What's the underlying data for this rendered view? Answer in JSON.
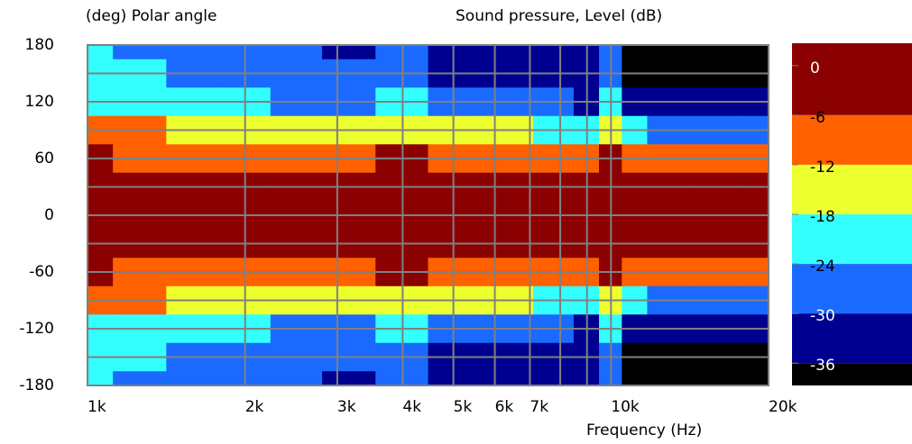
{
  "chart_data": {
    "type": "heatmap",
    "ylabel": "(deg)  Polar angle",
    "zlabel": "Sound pressure, Level  (dB)",
    "xlabel": "Frequency  (Hz)",
    "log_x": true,
    "grid": true,
    "xlim": [
      1000,
      20000
    ],
    "xticks": [
      {
        "value": 1000,
        "label": "1k"
      },
      {
        "value": 2000,
        "label": "2k"
      },
      {
        "value": 3000,
        "label": "3k"
      },
      {
        "value": 4000,
        "label": "4k"
      },
      {
        "value": 5000,
        "label": "5k"
      },
      {
        "value": 6000,
        "label": "6k"
      },
      {
        "value": 7000,
        "label": "7k"
      },
      {
        "value": 10000,
        "label": "10k"
      },
      {
        "value": 20000,
        "label": "20k"
      }
    ],
    "x_minor_grid": [
      8000,
      9000
    ],
    "ylim": [
      -180,
      180
    ],
    "yticks": [
      180,
      120,
      60,
      0,
      -60,
      -120,
      -180
    ],
    "y_minor_grid": [
      150,
      90,
      30,
      -30,
      -90,
      -150
    ],
    "x": [
      1000,
      1250,
      1600,
      2000,
      2500,
      3150,
      4000,
      5000,
      6300,
      8000,
      9000,
      10000,
      11000,
      12500,
      16000,
      20000
    ],
    "y": [
      180,
      150,
      120,
      90,
      60,
      30,
      0,
      -30,
      -60,
      -90,
      -120,
      -150,
      -180
    ],
    "z": [
      [
        -24,
        -25,
        -27,
        -29,
        -30,
        -31,
        -29,
        -32,
        -33,
        -35,
        -35,
        -29,
        -41,
        -42,
        -39,
        -38
      ],
      [
        -23,
        -24,
        -26,
        -28,
        -29,
        -30,
        -28,
        -31,
        -32,
        -34,
        -34,
        -27,
        -38,
        -37,
        -38,
        -37
      ],
      [
        -19,
        -20,
        -22,
        -24,
        -25,
        -25,
        -23,
        -26,
        -27,
        -30,
        -31,
        -24,
        -35,
        -35,
        -36,
        -35
      ],
      [
        -10,
        -11,
        -14,
        -15,
        -16,
        -17,
        -15,
        -17,
        -16,
        -19,
        -22,
        -13,
        -24,
        -25,
        -26,
        -25
      ],
      [
        -5,
        -6.5,
        -7,
        -8,
        -8,
        -8,
        -6,
        -7,
        -6.5,
        -8,
        -9,
        -5,
        -10,
        -8,
        -9,
        -8
      ],
      [
        -2,
        -2,
        -2,
        -2,
        -2,
        -2,
        -2,
        -2,
        -2,
        -2,
        -3,
        -1,
        -3,
        -3,
        -3,
        -3
      ],
      [
        0,
        0,
        0,
        0,
        0,
        0,
        0,
        0,
        0,
        0,
        0,
        0,
        0,
        0,
        0,
        0
      ],
      [
        -2,
        -2,
        -2,
        -2,
        -2,
        -2,
        -2,
        -2,
        -2,
        -2,
        -3,
        -1,
        -3,
        -3,
        -3,
        -3
      ],
      [
        -5,
        -6.5,
        -7,
        -8,
        -8,
        -8,
        -6,
        -7,
        -6.5,
        -8,
        -9,
        -5,
        -10,
        -8,
        -9,
        -8
      ],
      [
        -10,
        -11,
        -14,
        -15,
        -16,
        -17,
        -15,
        -17,
        -16,
        -19,
        -22,
        -13,
        -24,
        -25,
        -26,
        -25
      ],
      [
        -19,
        -20,
        -22,
        -24,
        -25,
        -25,
        -23,
        -26,
        -27,
        -30,
        -31,
        -24,
        -35,
        -35,
        -36,
        -35
      ],
      [
        -23,
        -24,
        -26,
        -28,
        -29,
        -30,
        -28,
        -31,
        -32,
        -34,
        -34,
        -27,
        -38,
        -37,
        -38,
        -37
      ],
      [
        -24,
        -25,
        -27,
        -29,
        -30,
        -31,
        -29,
        -32,
        -33,
        -35,
        -35,
        -29,
        -41,
        -42,
        -39,
        -38
      ]
    ],
    "colorbar": {
      "zlim": [
        -38.7,
        2.7
      ],
      "ticks": [
        0,
        -6,
        -12,
        -18,
        -24,
        -30,
        -36
      ],
      "colors": [
        "#8b0000",
        "#ff6000",
        "#eeff30",
        "#33ffff",
        "#1a6aff",
        "#000090",
        "#000000"
      ]
    },
    "grid_color": "#808080"
  }
}
